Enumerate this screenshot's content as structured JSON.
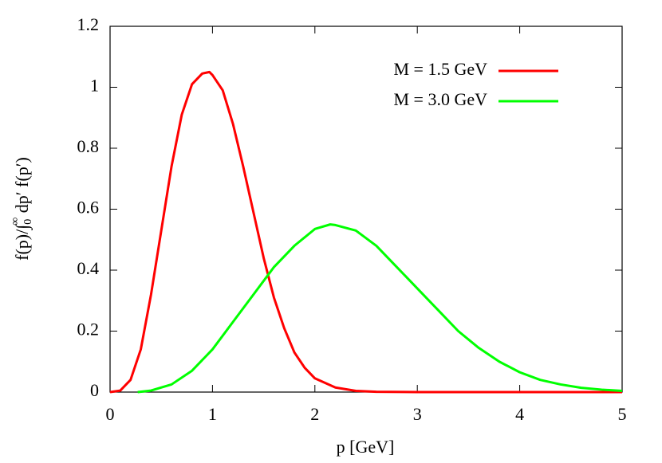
{
  "chart_data": {
    "type": "line",
    "xlabel": "p [GeV]",
    "ylabel": {
      "main": "f(p)/∫",
      "sub": "0",
      "sup": "∞",
      "rest": " dp′ f(p′)"
    },
    "xlim": [
      0,
      5
    ],
    "ylim": [
      0,
      1.2
    ],
    "xticks": [
      0,
      1,
      2,
      3,
      4,
      5
    ],
    "yticks": [
      0,
      0.2,
      0.4,
      0.6,
      0.8,
      1,
      1.2
    ],
    "legend": "top-right",
    "series": [
      {
        "name": "M = 1.5 GeV",
        "color": "#ff0000",
        "x": [
          0,
          0.1,
          0.2,
          0.3,
          0.4,
          0.5,
          0.6,
          0.7,
          0.8,
          0.9,
          0.97,
          1.0,
          1.1,
          1.2,
          1.3,
          1.4,
          1.5,
          1.6,
          1.7,
          1.8,
          1.9,
          2.0,
          2.2,
          2.4,
          2.6,
          3.0,
          4.0,
          5.0
        ],
        "values": [
          0,
          0.005,
          0.04,
          0.14,
          0.32,
          0.53,
          0.74,
          0.91,
          1.01,
          1.045,
          1.05,
          1.04,
          0.99,
          0.88,
          0.74,
          0.59,
          0.44,
          0.31,
          0.21,
          0.13,
          0.08,
          0.045,
          0.015,
          0.004,
          0.001,
          0,
          0,
          0
        ]
      },
      {
        "name": "M = 3.0 GeV",
        "color": "#00ff00",
        "x": [
          0.27,
          0.4,
          0.6,
          0.8,
          1.0,
          1.2,
          1.4,
          1.6,
          1.8,
          2.0,
          2.15,
          2.2,
          2.4,
          2.6,
          2.8,
          3.0,
          3.2,
          3.4,
          3.6,
          3.8,
          4.0,
          4.2,
          4.4,
          4.6,
          4.8,
          5.0
        ],
        "values": [
          0,
          0.005,
          0.025,
          0.07,
          0.14,
          0.23,
          0.32,
          0.41,
          0.48,
          0.535,
          0.55,
          0.548,
          0.53,
          0.48,
          0.41,
          0.34,
          0.27,
          0.2,
          0.145,
          0.1,
          0.065,
          0.04,
          0.025,
          0.014,
          0.008,
          0.004
        ]
      }
    ]
  }
}
